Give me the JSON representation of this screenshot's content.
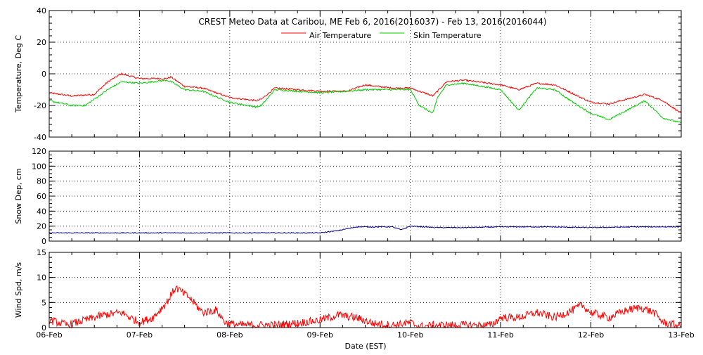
{
  "chart_data": {
    "title": "CREST Meteo Data at Caribou, ME   Feb  6, 2016(2016037) - Feb 13, 2016(2016044)",
    "xlabel": "Date (EST)",
    "x_tick_labels": [
      "06-Feb",
      "07-Feb",
      "08-Feb",
      "09-Feb",
      "10-Feb",
      "11-Feb",
      "12-Feb",
      "13-Feb"
    ],
    "x_unit": "day since 06-Feb 00:00 EST",
    "grid": true,
    "panels": [
      {
        "type": "line",
        "ylabel": "Temperature, Deg C",
        "ylim": [
          -40,
          40
        ],
        "yticks": [
          -40,
          -20,
          0,
          20,
          40
        ],
        "legend": "top-center",
        "series": [
          {
            "name": "Air Temperature",
            "color": "#ff0000",
            "points": [
              [
                0,
                -12
              ],
              [
                0.25,
                -14
              ],
              [
                0.5,
                -13
              ],
              [
                0.65,
                -5
              ],
              [
                0.8,
                0
              ],
              [
                1.0,
                -3
              ],
              [
                1.3,
                -3
              ],
              [
                1.35,
                -2
              ],
              [
                1.5,
                -8
              ],
              [
                1.7,
                -9
              ],
              [
                2.0,
                -15
              ],
              [
                2.3,
                -17
              ],
              [
                2.35,
                -16
              ],
              [
                2.5,
                -9
              ],
              [
                3.0,
                -11
              ],
              [
                3.3,
                -11
              ],
              [
                3.5,
                -7
              ],
              [
                3.8,
                -9
              ],
              [
                4.0,
                -9
              ],
              [
                4.25,
                -14
              ],
              [
                4.4,
                -5
              ],
              [
                4.6,
                -4
              ],
              [
                5.0,
                -7
              ],
              [
                5.2,
                -10
              ],
              [
                5.4,
                -6
              ],
              [
                5.6,
                -7
              ],
              [
                6.0,
                -18
              ],
              [
                6.2,
                -19
              ],
              [
                6.6,
                -13
              ],
              [
                6.8,
                -17
              ],
              [
                7.0,
                -25
              ]
            ]
          },
          {
            "name": "Skin Temperature",
            "color": "#00cc00",
            "points": [
              [
                0,
                -17
              ],
              [
                0.25,
                -20
              ],
              [
                0.4,
                -20
              ],
              [
                0.65,
                -10
              ],
              [
                0.8,
                -5
              ],
              [
                1.0,
                -6
              ],
              [
                1.3,
                -4
              ],
              [
                1.35,
                -5
              ],
              [
                1.5,
                -10
              ],
              [
                1.7,
                -11
              ],
              [
                2.0,
                -18
              ],
              [
                2.3,
                -21
              ],
              [
                2.35,
                -20
              ],
              [
                2.5,
                -10
              ],
              [
                3.0,
                -12
              ],
              [
                3.3,
                -11
              ],
              [
                3.5,
                -10
              ],
              [
                3.8,
                -10
              ],
              [
                4.0,
                -10
              ],
              [
                4.1,
                -20
              ],
              [
                4.25,
                -25
              ],
              [
                4.3,
                -15
              ],
              [
                4.4,
                -7
              ],
              [
                4.6,
                -6
              ],
              [
                5.0,
                -10
              ],
              [
                5.2,
                -23
              ],
              [
                5.4,
                -9
              ],
              [
                5.6,
                -10
              ],
              [
                5.8,
                -18
              ],
              [
                6.0,
                -25
              ],
              [
                6.2,
                -29
              ],
              [
                6.6,
                -17
              ],
              [
                6.8,
                -28
              ],
              [
                7.0,
                -31
              ]
            ]
          }
        ]
      },
      {
        "type": "line",
        "ylabel": "Snow Dep, cm",
        "ylim": [
          0,
          120
        ],
        "yticks": [
          0,
          20,
          40,
          60,
          80,
          100,
          120
        ],
        "series": [
          {
            "color": "#00008b",
            "points": [
              [
                0,
                11
              ],
              [
                1.0,
                11
              ],
              [
                2.0,
                11
              ],
              [
                3.0,
                11
              ],
              [
                3.2,
                14
              ],
              [
                3.4,
                19
              ],
              [
                3.6,
                19
              ],
              [
                3.8,
                19
              ],
              [
                3.9,
                15
              ],
              [
                4.0,
                20
              ],
              [
                4.3,
                18
              ],
              [
                4.6,
                18
              ],
              [
                5.0,
                19
              ],
              [
                5.5,
                19
              ],
              [
                6.0,
                18
              ],
              [
                6.5,
                19
              ],
              [
                7.0,
                19
              ]
            ]
          }
        ]
      },
      {
        "type": "line",
        "ylabel": "Wind Spd, m/s",
        "ylim": [
          0,
          15
        ],
        "yticks": [
          0,
          5,
          10,
          15
        ],
        "series": [
          {
            "color": "#ff0000",
            "points": [
              [
                0,
                1.5
              ],
              [
                0.2,
                0.5
              ],
              [
                0.4,
                1.5
              ],
              [
                0.6,
                2.5
              ],
              [
                0.8,
                3.0
              ],
              [
                1.0,
                1.0
              ],
              [
                1.15,
                2.0
              ],
              [
                1.3,
                5.0
              ],
              [
                1.4,
                8.0
              ],
              [
                1.55,
                6.0
              ],
              [
                1.7,
                3.0
              ],
              [
                1.85,
                3.5
              ],
              [
                1.95,
                1.0
              ],
              [
                2.1,
                0.5
              ],
              [
                2.5,
                0.5
              ],
              [
                2.8,
                1.0
              ],
              [
                3.0,
                1.5
              ],
              [
                3.2,
                2.5
              ],
              [
                3.4,
                2.0
              ],
              [
                3.6,
                0.8
              ],
              [
                3.8,
                0.5
              ],
              [
                4.0,
                1.0
              ],
              [
                4.1,
                0.2
              ],
              [
                4.3,
                0.5
              ],
              [
                4.6,
                0.5
              ],
              [
                4.9,
                0.5
              ],
              [
                5.0,
                2.0
              ],
              [
                5.2,
                2.0
              ],
              [
                5.4,
                3.0
              ],
              [
                5.6,
                2.0
              ],
              [
                5.8,
                3.5
              ],
              [
                5.9,
                4.5
              ],
              [
                6.0,
                3.0
              ],
              [
                6.2,
                2.0
              ],
              [
                6.4,
                3.5
              ],
              [
                6.55,
                4.0
              ],
              [
                6.7,
                3.0
              ],
              [
                6.8,
                1.0
              ],
              [
                7.0,
                0.3
              ]
            ]
          }
        ]
      }
    ]
  }
}
